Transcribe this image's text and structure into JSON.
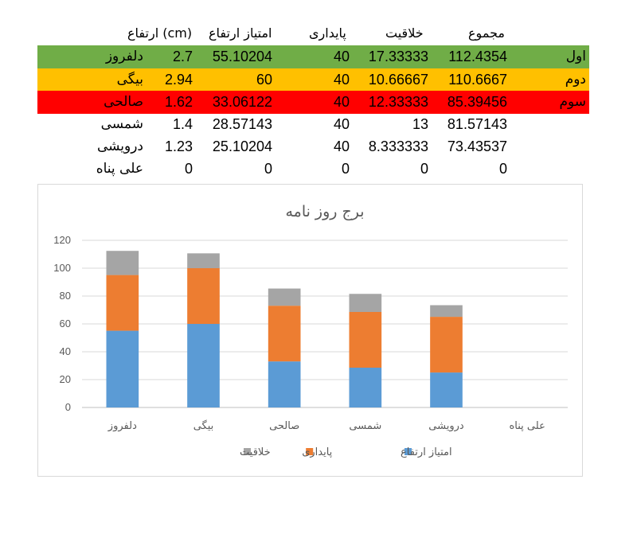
{
  "table": {
    "headers": {
      "total": "مجموع",
      "creativity": "خلاقیت",
      "stability": "پایداری",
      "height_score": "امتیاز ارتفاع",
      "height": "ارتفاع (cm)"
    },
    "rows": [
      {
        "rank": "اول",
        "total": "112.4354",
        "creativity": "17.33333",
        "stability": "40",
        "height_score": "55.10204",
        "height": "2.7",
        "name": "دلفروز",
        "color": "#70ad47"
      },
      {
        "rank": "دوم",
        "total": "110.6667",
        "creativity": "10.66667",
        "stability": "40",
        "height_score": "60",
        "height": "2.94",
        "name": "بیگی",
        "color": "#ffc000"
      },
      {
        "rank": "سوم",
        "total": "85.39456",
        "creativity": "12.33333",
        "stability": "40",
        "height_score": "33.06122",
        "height": "1.62",
        "name": "صالحی",
        "color": "#ff0000"
      },
      {
        "rank": "",
        "total": "81.57143",
        "creativity": "13",
        "stability": "40",
        "height_score": "28.57143",
        "height": "1.4",
        "name": "شمسی",
        "color": ""
      },
      {
        "rank": "",
        "total": "73.43537",
        "creativity": "8.333333",
        "stability": "40",
        "height_score": "25.10204",
        "height": "1.23",
        "name": "درویشی",
        "color": ""
      },
      {
        "rank": "",
        "total": "0",
        "creativity": "0",
        "stability": "0",
        "height_score": "0",
        "height": "0",
        "name": "علی پناه",
        "color": ""
      }
    ]
  },
  "chart_data": {
    "type": "bar",
    "stacked": true,
    "title": "برج روز نامه",
    "categories": [
      "دلفروز",
      "بیگی",
      "صالحی",
      "شمسی",
      "درویشی",
      "علی پناه"
    ],
    "series": [
      {
        "name": "امتیاز ارتفاع",
        "color": "#5b9bd5",
        "values": [
          55.10204,
          60,
          33.06122,
          28.57143,
          25.10204,
          0
        ]
      },
      {
        "name": "پایداری",
        "color": "#ed7d31",
        "values": [
          40,
          40,
          40,
          40,
          40,
          0
        ]
      },
      {
        "name": "خلاقیت",
        "color": "#a5a5a5",
        "values": [
          17.33333,
          10.66667,
          12.33333,
          13,
          8.333333,
          0
        ]
      }
    ],
    "ylim": [
      0,
      120
    ],
    "yticks": [
      0,
      20,
      40,
      60,
      80,
      100,
      120
    ],
    "grid": true,
    "legend_position": "bottom"
  }
}
